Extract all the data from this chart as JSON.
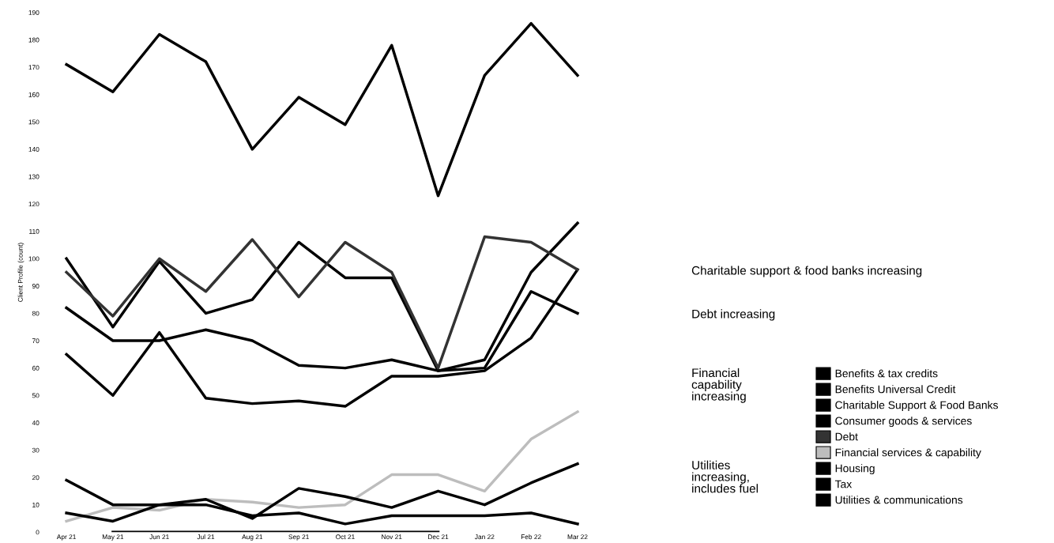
{
  "chart_data": {
    "type": "line",
    "ylabel": "Client Profile (count)",
    "categories": [
      "Apr 21",
      "May 21",
      "Jun 21",
      "Jul 21",
      "Aug 21",
      "Sep 21",
      "Oct 21",
      "Nov 21",
      "Dec 21",
      "Jan 22",
      "Feb 22",
      "Mar 22"
    ],
    "series": [
      {
        "name": "Benefits & tax credits",
        "color": "#000000",
        "values": [
          171,
          161,
          182,
          172,
          140,
          159,
          149,
          178,
          123,
          167,
          186,
          167
        ]
      },
      {
        "name": "Benefits Universal Credit",
        "color": "#000000",
        "values": [
          82,
          70,
          70,
          74,
          70,
          61,
          60,
          63,
          59,
          60,
          88,
          80
        ]
      },
      {
        "name": "Charitable Support & Food Banks",
        "color": "#000000",
        "values": [
          100,
          75,
          99,
          80,
          85,
          106,
          93,
          93,
          59,
          63,
          95,
          113
        ]
      },
      {
        "name": "Consumer goods & services",
        "color": "#000000",
        "values": [
          65,
          50,
          73,
          49,
          47,
          48,
          46,
          57,
          57,
          59,
          71,
          96
        ]
      },
      {
        "name": "Debt",
        "color": "#333333",
        "values": [
          95,
          79,
          100,
          88,
          107,
          86,
          106,
          95,
          60,
          108,
          106,
          96
        ]
      },
      {
        "name": "Financial services & capability",
        "color": "#bdbdbd",
        "values": [
          4,
          9,
          8,
          12,
          11,
          9,
          10,
          21,
          21,
          15,
          34,
          44
        ]
      },
      {
        "name": "Housing",
        "color": "#000000",
        "values": [
          7,
          4,
          10,
          10,
          6,
          7,
          3,
          6,
          6,
          6,
          7,
          3
        ]
      },
      {
        "name": "Tax",
        "color": "#000000",
        "values": [
          null,
          0,
          0,
          0,
          0,
          0,
          0,
          0,
          0,
          null,
          null,
          null
        ]
      },
      {
        "name": "Utilities & communications",
        "color": "#000000",
        "values": [
          19,
          10,
          10,
          12,
          5,
          16,
          13,
          9,
          15,
          10,
          18,
          25
        ]
      }
    ],
    "ylim": [
      0,
      190
    ],
    "yticks": [
      0,
      10,
      20,
      30,
      40,
      50,
      60,
      70,
      80,
      90,
      100,
      110,
      120,
      130,
      140,
      150,
      160,
      170,
      180,
      190
    ],
    "grid": false,
    "legend": "right",
    "marker": "none",
    "line_style": "solid",
    "annotations": [
      "Charitable support & food banks increasing",
      "Debt increasing",
      "Financial\ncapability\nincreasing",
      "Utilities\nincreasing,\nincludes fuel"
    ]
  }
}
